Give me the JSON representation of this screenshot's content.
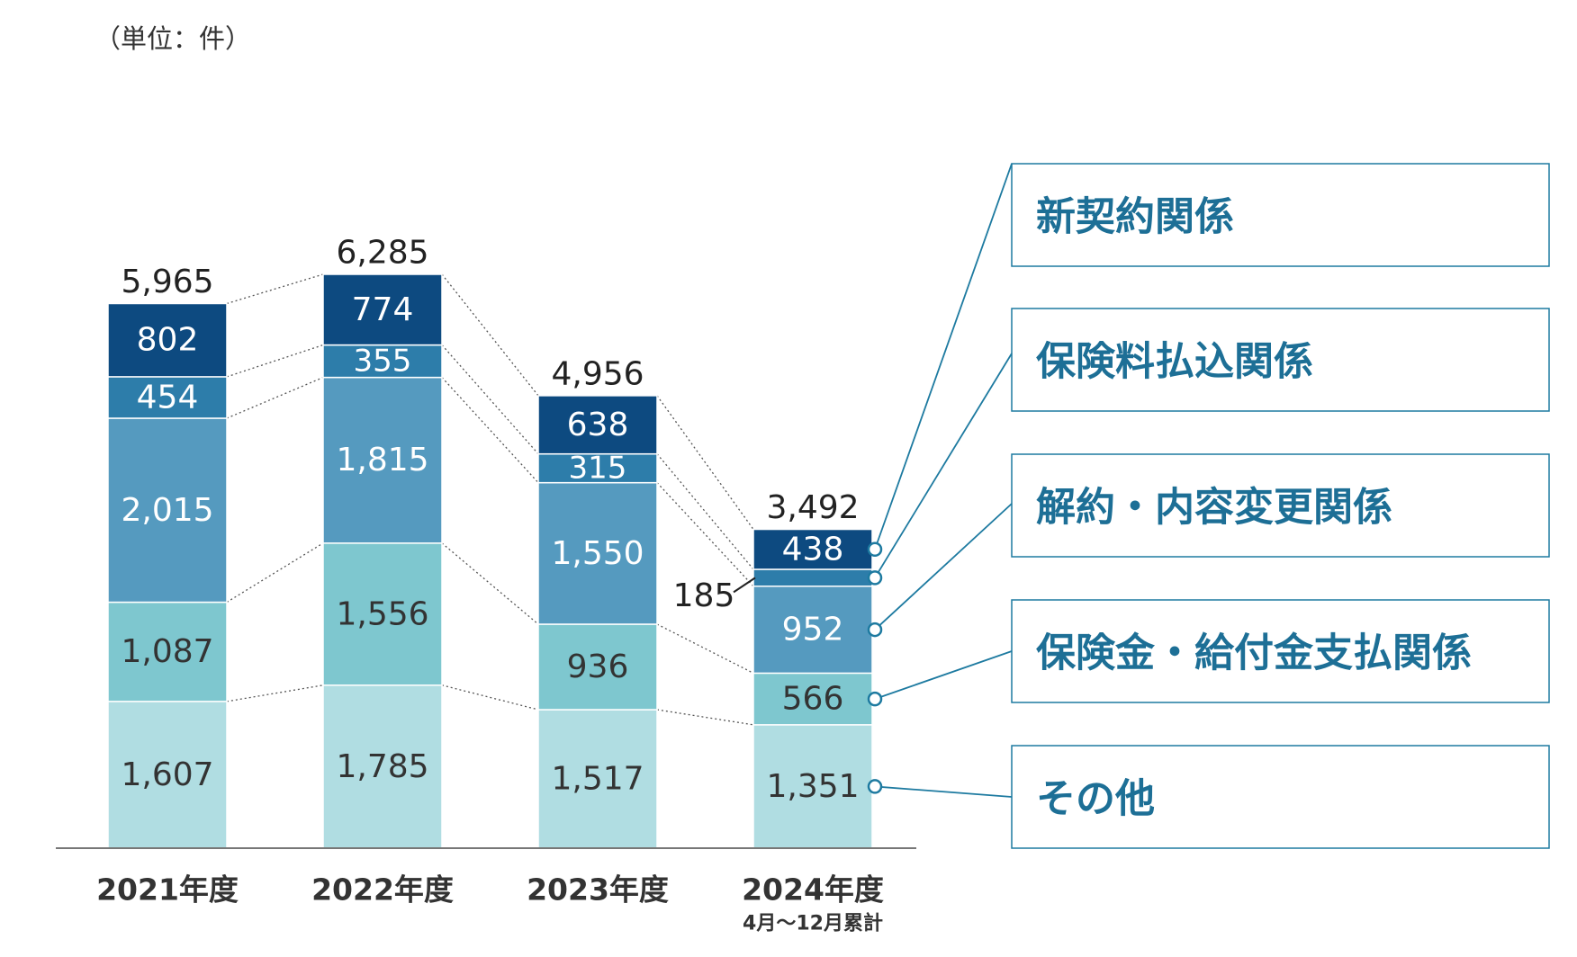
{
  "unit_label": "（単位：件）",
  "chart_data": {
    "type": "bar",
    "stacked": true,
    "title": "",
    "categories": [
      "2021年度",
      "2022年度",
      "2023年度",
      "2024年度"
    ],
    "category_notes": [
      "",
      "",
      "",
      "4月～12月累計"
    ],
    "totals": [
      5965,
      6285,
      4956,
      3492
    ],
    "total_labels": [
      "5,965",
      "6,285",
      "4,956",
      "3,492"
    ],
    "series": [
      {
        "name": "その他",
        "color": "#b0dde2",
        "text_color": "#333333",
        "values": [
          1607,
          1785,
          1517,
          1351
        ],
        "labels": [
          "1,607",
          "1,785",
          "1,517",
          "1,351"
        ]
      },
      {
        "name": "保険金・給付金支払関係",
        "color": "#7ec7cf",
        "text_color": "#333333",
        "values": [
          1087,
          1556,
          936,
          566
        ],
        "labels": [
          "1,087",
          "1,556",
          "936",
          "566"
        ]
      },
      {
        "name": "解約・内容変更関係",
        "color": "#559abf",
        "text_color": "#ffffff",
        "values": [
          2015,
          1815,
          1550,
          952
        ],
        "labels": [
          "2,015",
          "1,815",
          "1,550",
          "952"
        ]
      },
      {
        "name": "保険料払込関係",
        "color": "#2d7daa",
        "text_color": "#ffffff",
        "values": [
          454,
          355,
          315,
          185
        ],
        "labels": [
          "454",
          "355",
          "315",
          "185"
        ]
      },
      {
        "name": "新契約関係",
        "color": "#0d4a80",
        "text_color": "#ffffff",
        "values": [
          802,
          774,
          638,
          438
        ],
        "labels": [
          "802",
          "774",
          "638",
          "438"
        ]
      }
    ],
    "ylim": [
      0,
      6600
    ],
    "legend_position": "right",
    "accent_color": "#1d7aa0"
  }
}
